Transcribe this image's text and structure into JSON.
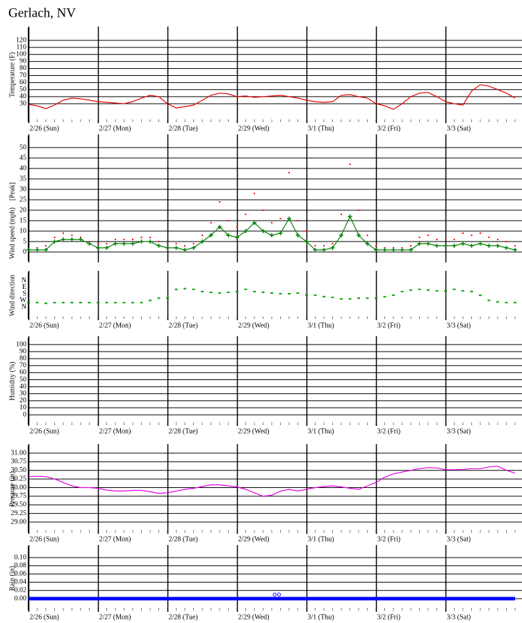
{
  "title": "Gerlach, NV",
  "chart_data": [
    {
      "type": "line",
      "y_label": "Temperature (F)",
      "grid": true,
      "xlim": [
        0,
        168
      ],
      "xticks": [
        {
          "value": 0,
          "label": "2/26 (Sun)"
        },
        {
          "value": 24,
          "label": "2/27 (Mon)"
        },
        {
          "value": 48,
          "label": "2/28 (Tue)"
        },
        {
          "value": 72,
          "label": "2/29 (Wed)"
        },
        {
          "value": 96,
          "label": "3/1 (Thu)"
        },
        {
          "value": 120,
          "label": "3/2 (Fri)"
        },
        {
          "value": 144,
          "label": "3/3 (Sat)"
        }
      ],
      "ylim": [
        4.3,
        137.8
      ],
      "yticks": [
        30,
        40,
        50,
        60,
        70,
        80,
        90,
        100,
        110,
        120
      ],
      "x": [
        0,
        3,
        6,
        9,
        12,
        15,
        18,
        21,
        24,
        27,
        30,
        33,
        36,
        39,
        42,
        45,
        48,
        51,
        54,
        57,
        60,
        63,
        66,
        69,
        72,
        75,
        78,
        81,
        84,
        87,
        90,
        93,
        96,
        99,
        102,
        105,
        108,
        111,
        114,
        117,
        120,
        123,
        126,
        129,
        132,
        135,
        138,
        141,
        144,
        147,
        150,
        153,
        156,
        159,
        162,
        165,
        168
      ],
      "series": [
        {
          "color": "#e00000",
          "line": true,
          "values": [
            29,
            27,
            23,
            28,
            35,
            38,
            37,
            35,
            33,
            32,
            31,
            30,
            33,
            38,
            42,
            40,
            30,
            24,
            26,
            28,
            35,
            42,
            45,
            44,
            40,
            41,
            39,
            40,
            41,
            42,
            40,
            38,
            35,
            33,
            32,
            33,
            42,
            43,
            40,
            38,
            30,
            27,
            22,
            30,
            40,
            45,
            46,
            40,
            33,
            30,
            28,
            48,
            57,
            55,
            50,
            45,
            38
          ]
        }
      ]
    },
    {
      "type": "line",
      "y_label": "Wind speed (mph)",
      "grid": true,
      "xlim": [
        0,
        168
      ],
      "ylim": [
        -4.33,
        55.67
      ],
      "yticks": [
        0,
        5,
        10,
        15,
        20,
        25,
        30,
        35,
        40,
        45,
        50
      ],
      "x": [
        0,
        3,
        6,
        9,
        12,
        15,
        18,
        21,
        24,
        27,
        30,
        33,
        36,
        39,
        42,
        45,
        48,
        51,
        54,
        57,
        60,
        63,
        66,
        69,
        72,
        75,
        78,
        81,
        84,
        87,
        90,
        93,
        96,
        99,
        102,
        105,
        108,
        111,
        114,
        117,
        120,
        123,
        126,
        129,
        132,
        135,
        138,
        141,
        144,
        147,
        150,
        153,
        156,
        159,
        162,
        165,
        168
      ],
      "series": [
        {
          "name": "[Peak]",
          "color": "#ff0000",
          "line": false,
          "marker": "dot",
          "values": [
            1,
            2,
            3,
            7,
            9,
            8,
            7,
            5,
            4,
            4,
            6,
            6,
            6,
            7,
            7,
            5,
            4,
            4,
            3,
            4,
            8,
            14,
            24,
            15,
            12,
            18,
            28,
            20,
            14,
            16,
            38,
            15,
            10,
            3,
            3,
            4,
            18,
            42,
            20,
            8,
            3,
            2,
            2,
            2,
            3,
            7,
            8,
            6,
            6,
            6,
            9,
            8,
            9,
            7,
            6,
            5,
            3
          ]
        },
        {
          "color": "#008000",
          "line": true,
          "marker": "plus",
          "values": [
            1,
            1,
            1,
            5,
            6,
            6,
            6,
            4,
            2,
            2,
            4,
            4,
            4,
            5,
            5,
            3,
            2,
            2,
            1,
            2,
            5,
            8,
            12,
            8,
            7,
            10,
            14,
            10,
            8,
            9,
            16,
            8,
            5,
            1,
            1,
            2,
            8,
            17,
            8,
            4,
            1,
            1,
            1,
            1,
            1,
            4,
            4,
            3,
            3,
            3,
            4,
            3,
            4,
            3,
            3,
            2,
            1
          ]
        }
      ]
    },
    {
      "type": "scatter",
      "y_label": "Wind direction",
      "grid": false,
      "xlim": [
        0,
        168
      ],
      "xticks": [
        {
          "value": 0,
          "label": "2/26 (Sun)"
        },
        {
          "value": 24,
          "label": "2/27 (Mon)"
        },
        {
          "value": 48,
          "label": "2/28 (Tue)"
        },
        {
          "value": 72,
          "label": "2/29 (Wed)"
        },
        {
          "value": 96,
          "label": "3/1 (Thu)"
        },
        {
          "value": 120,
          "label": "3/2 (Fri)"
        },
        {
          "value": 144,
          "label": "3/3 (Sat)"
        }
      ],
      "ylim": [
        521,
        -114
      ],
      "yticks": [
        {
          "value": 0,
          "label": "N"
        },
        {
          "value": 90,
          "label": "E"
        },
        {
          "value": 180,
          "label": "S"
        },
        {
          "value": 270,
          "label": "W"
        },
        {
          "value": 360,
          "label": "N"
        }
      ],
      "x": [
        0,
        3,
        6,
        9,
        12,
        15,
        18,
        21,
        24,
        27,
        30,
        33,
        36,
        39,
        42,
        45,
        48,
        51,
        54,
        57,
        60,
        63,
        66,
        69,
        72,
        75,
        78,
        81,
        84,
        87,
        90,
        93,
        96,
        99,
        102,
        105,
        108,
        111,
        114,
        117,
        120,
        123,
        126,
        129,
        132,
        135,
        138,
        141,
        144,
        147,
        150,
        153,
        156,
        159,
        162,
        165,
        168
      ],
      "series": [
        {
          "color": "#00a000",
          "values": [
            300,
            300,
            310,
            300,
            300,
            300,
            300,
            300,
            300,
            300,
            300,
            300,
            300,
            300,
            270,
            240,
            240,
            120,
            110,
            120,
            150,
            160,
            170,
            160,
            150,
            120,
            150,
            160,
            170,
            180,
            180,
            170,
            200,
            200,
            220,
            230,
            250,
            250,
            240,
            240,
            240,
            220,
            200,
            150,
            130,
            120,
            130,
            140,
            140,
            120,
            140,
            150,
            200,
            270,
            290,
            300,
            300
          ]
        }
      ]
    },
    {
      "type": "line",
      "y_label": "Humidity (%)",
      "grid": true,
      "xlim": [
        0,
        168
      ],
      "xticks": [
        {
          "value": 0,
          "label": "2/26 (Sun)"
        },
        {
          "value": 24,
          "label": "2/27 (Mon)"
        },
        {
          "value": 48,
          "label": "2/28 (Tue)"
        },
        {
          "value": 72,
          "label": "2/29 (Wed)"
        },
        {
          "value": 96,
          "label": "3/1 (Thu)"
        },
        {
          "value": 120,
          "label": "3/2 (Fri)"
        },
        {
          "value": 144,
          "label": "3/3 (Sat)"
        }
      ],
      "ylim": [
        -13.9,
        109.9
      ],
      "yticks": [
        0,
        10,
        20,
        30,
        40,
        50,
        60,
        70,
        80,
        90,
        100
      ]
    },
    {
      "type": "line",
      "y_label": "Pressure (in)",
      "grid": true,
      "xlim": [
        0,
        168
      ],
      "xticks": [
        {
          "value": 0,
          "label": "2/26 (Sun)"
        },
        {
          "value": 24,
          "label": "2/27 (Mon)"
        },
        {
          "value": 48,
          "label": "2/28 (Tue)"
        },
        {
          "value": 72,
          "label": "2/29 (Wed)"
        },
        {
          "value": 96,
          "label": "3/1 (Thu)"
        },
        {
          "value": 120,
          "label": "3/2 (Fri)"
        },
        {
          "value": 144,
          "label": "3/3 (Sat)"
        }
      ],
      "ylim": [
        28.697,
        31.222
      ],
      "yticks": [
        {
          "value": 29,
          "label": "29.00"
        },
        29.25,
        {
          "value": 29.5,
          "label": "29.50"
        },
        29.75,
        {
          "value": 30,
          "label": "30.00"
        },
        30.25,
        {
          "value": 30.5,
          "label": "30.50"
        },
        30.75,
        {
          "value": 31,
          "label": "31.00"
        }
      ],
      "x": [
        0,
        3,
        6,
        9,
        12,
        15,
        18,
        21,
        24,
        27,
        30,
        33,
        36,
        39,
        42,
        45,
        48,
        51,
        54,
        57,
        60,
        63,
        66,
        69,
        72,
        75,
        78,
        81,
        84,
        87,
        90,
        93,
        96,
        99,
        102,
        105,
        108,
        111,
        114,
        117,
        120,
        123,
        126,
        129,
        132,
        135,
        138,
        141,
        144,
        147,
        150,
        153,
        156,
        159,
        162,
        165,
        168
      ],
      "series": [
        {
          "color": "#e000e0",
          "line": true,
          "values": [
            30.32,
            30.33,
            30.32,
            30.25,
            30.15,
            30.05,
            30.0,
            30.0,
            29.98,
            29.93,
            29.9,
            29.9,
            29.92,
            29.92,
            29.88,
            29.83,
            29.85,
            29.9,
            29.95,
            29.98,
            30.03,
            30.08,
            30.08,
            30.05,
            30.02,
            29.95,
            29.85,
            29.75,
            29.78,
            29.9,
            29.95,
            29.9,
            29.95,
            30.0,
            30.03,
            30.05,
            30.02,
            29.98,
            29.95,
            30.05,
            30.15,
            30.3,
            30.4,
            30.45,
            30.5,
            30.55,
            30.58,
            30.57,
            30.52,
            30.52,
            30.53,
            30.55,
            30.55,
            30.6,
            30.62,
            30.5,
            30.42
          ]
        }
      ]
    },
    {
      "type": "line",
      "y_label": "Rain (in)",
      "grid": true,
      "xlim": [
        0,
        168
      ],
      "xticks": [
        {
          "value": 0,
          "label": "2/26 (Sun)"
        },
        {
          "value": 24,
          "label": "2/27 (Mon)"
        },
        {
          "value": 48,
          "label": "2/28 (Tue)"
        },
        {
          "value": 72,
          "label": "2/29 (Wed)"
        },
        {
          "value": 96,
          "label": "3/1 (Thu)"
        },
        {
          "value": 120,
          "label": "3/2 (Fri)"
        },
        {
          "value": 144,
          "label": "3/3 (Sat)"
        }
      ],
      "ylim": [
        -0.0288,
        0.1271
      ],
      "yticks": [
        {
          "value": 0,
          "label": "0.00"
        },
        0.02,
        0.04,
        0.06,
        0.08,
        {
          "value": 0.1,
          "label": "0.10"
        }
      ],
      "x": [
        0,
        3,
        6,
        9,
        12,
        15,
        18,
        21,
        24,
        27,
        30,
        33,
        36,
        39,
        42,
        45,
        48,
        51,
        54,
        57,
        60,
        63,
        66,
        69,
        72,
        75,
        78,
        81,
        84,
        87,
        90,
        93,
        96,
        99,
        102,
        105,
        108,
        111,
        114,
        117,
        120,
        123,
        126,
        129,
        132,
        135,
        138,
        141,
        144,
        147,
        150,
        153,
        156,
        159,
        162,
        165,
        168
      ],
      "series": [
        {
          "color": "#0000ff",
          "line": true,
          "line_width": 5,
          "values": [
            0,
            0,
            0,
            0,
            0,
            0,
            0,
            0,
            0,
            0,
            0,
            0,
            0,
            0,
            0,
            0,
            0,
            0,
            0,
            0,
            0,
            0,
            0,
            0,
            0,
            0,
            0,
            0,
            0,
            0,
            0,
            0,
            0,
            0,
            0,
            0,
            0,
            0,
            0,
            0,
            0,
            0,
            0,
            0,
            0,
            0,
            0,
            0,
            0,
            0,
            0,
            0,
            0,
            0,
            0,
            0,
            0
          ]
        }
      ],
      "points": {
        "color": "#0000ff",
        "x": [
          85,
          86.5
        ],
        "values": [
          0.01,
          0.01
        ]
      }
    }
  ]
}
